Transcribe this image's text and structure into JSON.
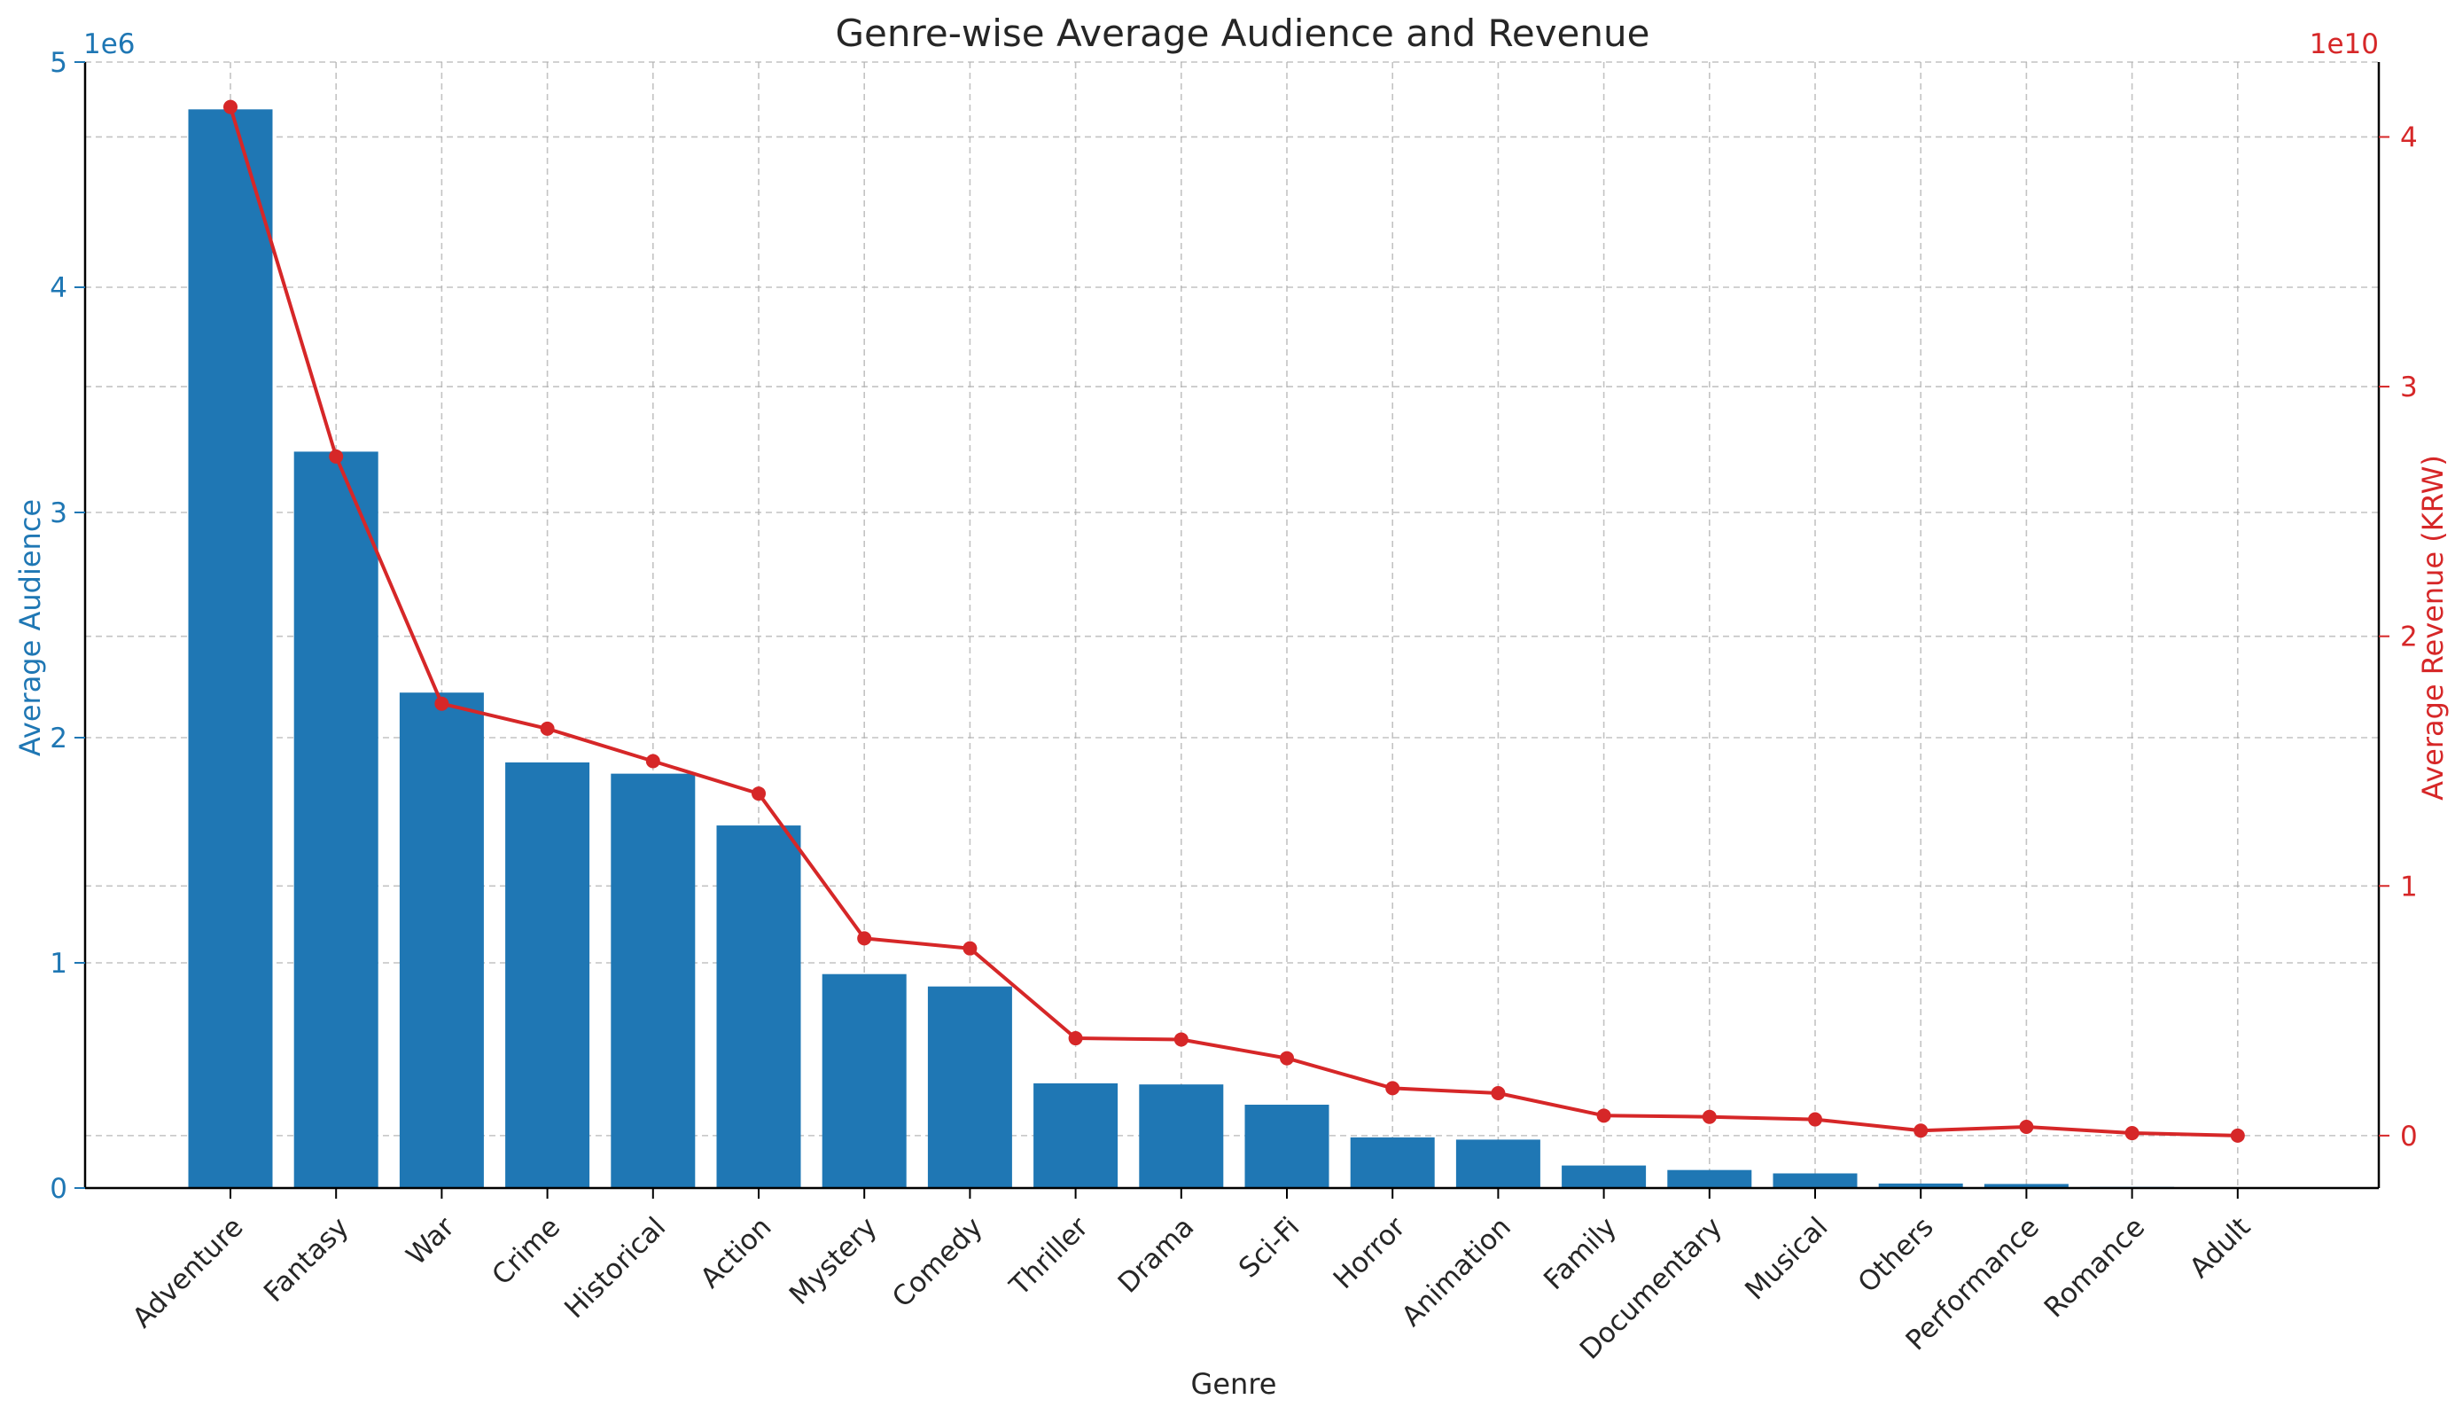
{
  "chart_data": {
    "type": "bar",
    "title": "Genre-wise Average Audience and Revenue",
    "xlabel": "Genre",
    "categories": [
      "Adventure",
      "Fantasy",
      "War",
      "Crime",
      "Historical",
      "Action",
      "Mystery",
      "Comedy",
      "Thriller",
      "Drama",
      "Sci-Fi",
      "Horror",
      "Animation",
      "Family",
      "Documentary",
      "Musical",
      "Others",
      "Performance",
      "Romance",
      "Adult"
    ],
    "series": [
      {
        "name": "Average Audience",
        "type": "bar",
        "axis": "left",
        "values": [
          4790000,
          3270000,
          2200000,
          1890000,
          1840000,
          1610000,
          950000,
          895000,
          465000,
          460000,
          370000,
          225000,
          215000,
          100000,
          80000,
          65000,
          20000,
          18000,
          5000,
          1000
        ],
        "color": "#1f77b4"
      },
      {
        "name": "Average Revenue (KRW)",
        "type": "line",
        "axis": "right",
        "values": [
          41200000000,
          27200000000,
          17300000000,
          16300000000,
          15000000000,
          13700000000,
          7900000000,
          7500000000,
          3900000000,
          3850000000,
          3100000000,
          1900000000,
          1700000000,
          800000000,
          750000000,
          650000000,
          200000000,
          350000000,
          100000000,
          0
        ],
        "color": "#d62728"
      }
    ],
    "y_left": {
      "label": "Average Audience",
      "multiplier_label": "1e6",
      "ylim": [
        0,
        5000000
      ],
      "ticks": [
        0,
        1000000,
        2000000,
        3000000,
        4000000,
        5000000
      ],
      "tick_labels": [
        "0",
        "1",
        "2",
        "3",
        "4",
        "5"
      ],
      "color": "#1f77b4"
    },
    "y_right": {
      "label": "Average Revenue (KRW)",
      "multiplier_label": "1e10",
      "ylim": [
        -2100000000,
        43000000000
      ],
      "ticks": [
        0,
        10000000000,
        20000000000,
        30000000000,
        40000000000
      ],
      "tick_labels": [
        "0",
        "1",
        "2",
        "3",
        "4"
      ],
      "color": "#d62728"
    },
    "grid": true
  }
}
